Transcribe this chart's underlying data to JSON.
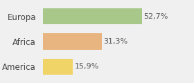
{
  "categories": [
    "Europa",
    "Africa",
    "America"
  ],
  "values": [
    52.7,
    31.3,
    15.9
  ],
  "labels": [
    "52,7%",
    "31,3%",
    "15,9%"
  ],
  "bar_colors": [
    "#a8c88a",
    "#e8b480",
    "#f0d468"
  ],
  "background_color": "#f0f0f0",
  "xlim": [
    0,
    68
  ],
  "bar_height": 0.65,
  "label_fontsize": 8,
  "tick_fontsize": 8.5
}
